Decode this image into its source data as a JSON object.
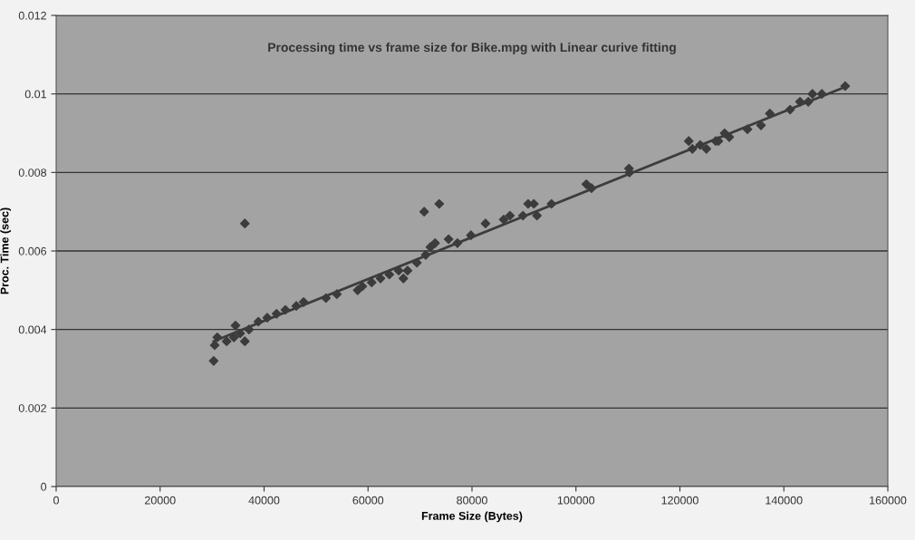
{
  "chart_data": {
    "type": "scatter",
    "title": "Processing time vs frame size for Bike.mpg with Linear curive fitting",
    "xlabel": "Frame Size (Bytes)",
    "ylabel": "Proc. Time (sec)",
    "xlim": [
      0,
      160000
    ],
    "xticks": [
      0,
      20000,
      40000,
      60000,
      80000,
      100000,
      120000,
      140000,
      160000
    ],
    "ylim": [
      0,
      0.012
    ],
    "yticks": [
      0,
      0.002,
      0.004,
      0.006,
      0.008,
      0.01,
      0.012
    ],
    "grid": "y",
    "marker": "diamond",
    "series": [
      {
        "color": "#3c3c3c",
        "x": [
          30300,
          30500,
          31000,
          32800,
          34200,
          35400,
          37100,
          38900,
          40600,
          42400,
          44100,
          34500,
          36300,
          36300,
          46200,
          47600,
          51900,
          54000,
          58000,
          58900,
          60700,
          62400,
          64100,
          65900,
          67600,
          69400,
          71100,
          72000,
          72900,
          66800,
          70800,
          73700,
          75500,
          77200,
          79800,
          82600,
          86100,
          87300,
          89800,
          90800,
          91900,
          92500,
          95300,
          102000,
          103000,
          110200,
          110300,
          121700,
          122400,
          123900,
          125100,
          126900,
          127400,
          128600,
          129500,
          133000,
          135600,
          137300,
          141200,
          143100,
          144700,
          145500,
          147300,
          151800
        ],
        "values": [
          0.0032,
          0.0036,
          0.0038,
          0.0037,
          0.0038,
          0.0039,
          0.004,
          0.0042,
          0.0043,
          0.0044,
          0.0045,
          0.0041,
          0.0037,
          0.0067,
          0.0046,
          0.0047,
          0.0048,
          0.0049,
          0.005,
          0.0051,
          0.0052,
          0.0053,
          0.0054,
          0.0055,
          0.0055,
          0.0057,
          0.0059,
          0.0061,
          0.0062,
          0.0053,
          0.007,
          0.0072,
          0.0063,
          0.0062,
          0.0064,
          0.0067,
          0.0068,
          0.0069,
          0.0069,
          0.0072,
          0.0072,
          0.0069,
          0.0072,
          0.0077,
          0.0076,
          0.0081,
          0.008,
          0.0088,
          0.0086,
          0.0087,
          0.0086,
          0.0088,
          0.0088,
          0.009,
          0.0089,
          0.0091,
          0.0092,
          0.0095,
          0.0096,
          0.0098,
          0.0098,
          0.01,
          0.01,
          0.0102
        ]
      },
      {
        "type": "line",
        "color": "#3c3c3c",
        "marker": "none",
        "line_style": "solid",
        "x": [
          30300,
          152200
        ],
        "values": [
          0.0037,
          0.0102
        ]
      }
    ]
  }
}
